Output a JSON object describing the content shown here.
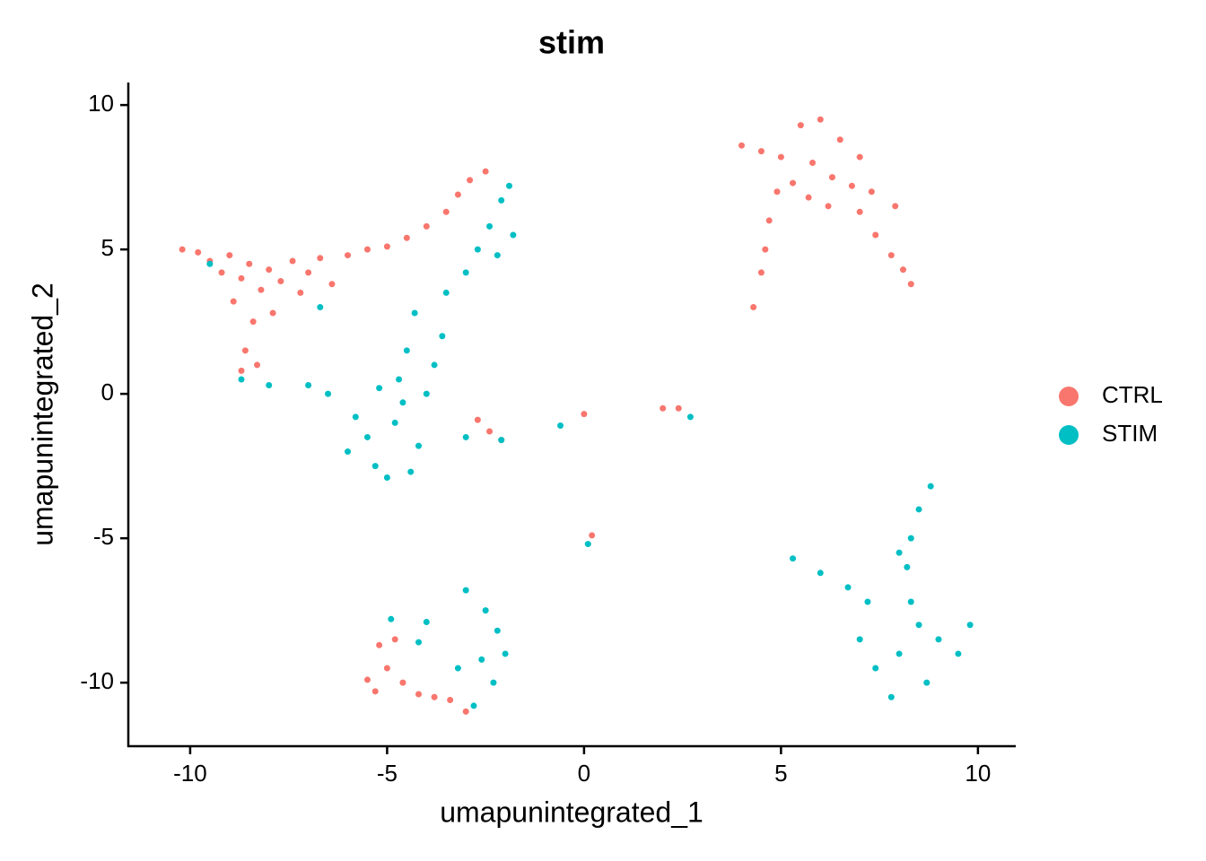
{
  "chart_data": {
    "type": "scatter",
    "title": "stim",
    "x_label": "umapunintegrated_1",
    "y_label": "umapunintegrated_2",
    "xlim": [
      -11.57,
      10.96
    ],
    "xticks": [
      -10,
      -5,
      0,
      5,
      10
    ],
    "ylim": [
      -12.2,
      10.78
    ],
    "yticks": [
      -10,
      -5,
      0,
      5,
      10
    ],
    "series": [
      {
        "name": "CTRL",
        "color": "#F8766D",
        "x": [
          -10.2,
          -9.8,
          -9.5,
          -9.2,
          -9.0,
          -8.7,
          -8.5,
          -8.2,
          -8.0,
          -7.7,
          -7.4,
          -7.2,
          -7.0,
          -6.7,
          -6.4,
          -6.0,
          -5.5,
          -5.0,
          -4.5,
          -4.0,
          -3.5,
          -3.2,
          -2.9,
          -2.5,
          -8.4,
          -8.6,
          -8.7,
          -8.9,
          -7.9,
          -8.3,
          4.0,
          4.5,
          5.0,
          5.5,
          5.8,
          6.0,
          6.3,
          6.5,
          6.8,
          7.0,
          7.3,
          5.3,
          5.7,
          6.2,
          4.9,
          4.7,
          4.6,
          4.5,
          4.3,
          7.0,
          7.4,
          7.8,
          8.1,
          8.3,
          7.9,
          -5.5,
          -5.2,
          -5.3,
          -5.0,
          -4.6,
          -4.2,
          -3.8,
          -3.4,
          -3.0,
          -4.8,
          -2.7,
          -2.4,
          -2.1,
          2.0,
          2.4,
          0.0,
          0.2
        ],
        "values": [
          5.0,
          4.9,
          4.6,
          4.2,
          4.8,
          4.0,
          4.5,
          3.6,
          4.3,
          3.9,
          4.6,
          3.5,
          4.2,
          4.7,
          3.8,
          4.8,
          5.0,
          5.1,
          5.4,
          5.8,
          6.3,
          6.9,
          7.4,
          7.7,
          2.5,
          1.5,
          0.8,
          3.2,
          2.8,
          1.0,
          8.6,
          8.4,
          8.2,
          9.3,
          8.0,
          9.5,
          7.5,
          8.8,
          7.2,
          8.2,
          7.0,
          7.3,
          6.8,
          6.5,
          7.0,
          6.0,
          5.0,
          4.2,
          3.0,
          6.3,
          5.5,
          4.8,
          4.3,
          3.8,
          6.5,
          -9.9,
          -8.7,
          -10.3,
          -9.5,
          -10.0,
          -10.4,
          -10.5,
          -10.6,
          -11.0,
          -8.5,
          -0.9,
          -1.3,
          -1.6,
          -0.5,
          -0.5,
          -0.7,
          -4.9
        ]
      },
      {
        "name": "STIM",
        "color": "#00BFC4",
        "x": [
          -5.5,
          -5.3,
          -5.0,
          -4.8,
          -4.7,
          -4.5,
          -4.3,
          -4.6,
          -5.2,
          -4.2,
          -4.0,
          -3.8,
          -5.8,
          -6.0,
          -4.4,
          -3.6,
          -3.5,
          -3.0,
          -2.7,
          -2.4,
          -2.1,
          -1.9,
          -1.8,
          -2.2,
          -7.0,
          -8.0,
          -8.7,
          -6.5,
          -9.5,
          -6.7,
          -3.0,
          -2.1,
          -4.9,
          -4.0,
          -3.0,
          -2.5,
          -2.2,
          -2.0,
          -2.3,
          -2.8,
          -3.2,
          -4.2,
          -2.6,
          5.3,
          6.0,
          6.7,
          7.2,
          7.0,
          7.4,
          7.8,
          8.0,
          8.5,
          9.0,
          9.5,
          9.8,
          8.3,
          8.7,
          8.2,
          8.3,
          8.5,
          8.8,
          8.0,
          2.7,
          0.1,
          -0.6
        ],
        "values": [
          -1.5,
          -2.5,
          -2.9,
          -1.0,
          0.5,
          1.5,
          2.8,
          -0.3,
          0.2,
          -1.8,
          0.0,
          1.0,
          -0.8,
          -2.0,
          -2.7,
          2.0,
          3.5,
          4.2,
          5.0,
          5.8,
          6.7,
          7.2,
          5.5,
          4.8,
          0.3,
          0.3,
          0.5,
          0.0,
          4.5,
          3.0,
          -1.5,
          -1.6,
          -7.8,
          -7.9,
          -6.8,
          -7.5,
          -8.2,
          -9.0,
          -10.0,
          -10.8,
          -9.5,
          -8.6,
          -9.2,
          -5.7,
          -6.2,
          -6.7,
          -7.2,
          -8.5,
          -9.5,
          -10.5,
          -9.0,
          -8.0,
          -8.5,
          -9.0,
          -8.0,
          -7.2,
          -10.0,
          -6.0,
          -5.0,
          -4.0,
          -3.2,
          -5.5,
          -0.8,
          -5.2,
          -1.1
        ]
      }
    ]
  }
}
